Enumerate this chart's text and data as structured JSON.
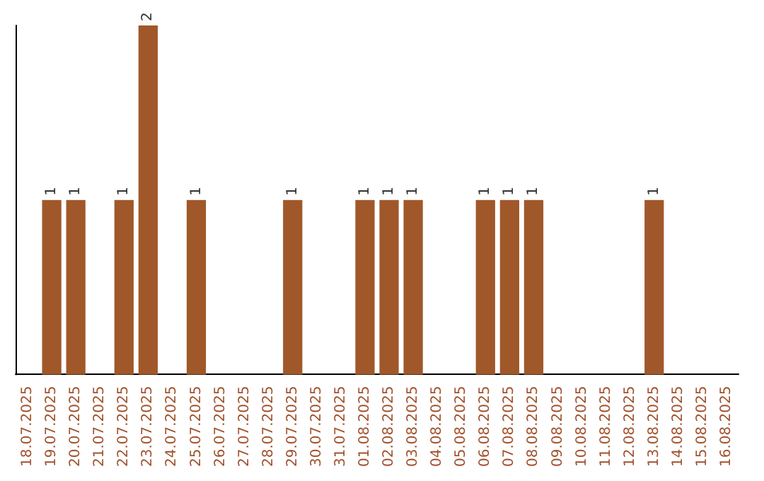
{
  "chart_data": {
    "type": "bar",
    "categories": [
      "18.07.2025",
      "19.07.2025",
      "20.07.2025",
      "21.07.2025",
      "22.07.2025",
      "23.07.2025",
      "24.07.2025",
      "25.07.2025",
      "26.07.2025",
      "27.07.2025",
      "28.07.2025",
      "29.07.2025",
      "30.07.2025",
      "31.07.2025",
      "01.08.2025",
      "02.08.2025",
      "03.08.2025",
      "04.08.2025",
      "05.08.2025",
      "06.08.2025",
      "07.08.2025",
      "08.08.2025",
      "09.08.2025",
      "10.08.2025",
      "11.08.2025",
      "12.08.2025",
      "13.08.2025",
      "14.08.2025",
      "15.08.2025",
      "16.08.2025"
    ],
    "values": [
      0,
      1,
      1,
      0,
      1,
      2,
      0,
      1,
      0,
      0,
      0,
      1,
      0,
      0,
      1,
      1,
      1,
      0,
      0,
      1,
      1,
      1,
      0,
      0,
      0,
      0,
      1,
      0,
      0,
      0
    ],
    "value_labels": [
      null,
      "1",
      "1",
      null,
      "1",
      "2",
      null,
      "1",
      null,
      null,
      null,
      "1",
      null,
      null,
      "1",
      "1",
      "1",
      null,
      null,
      "1",
      "1",
      "1",
      null,
      null,
      null,
      null,
      "1",
      null,
      null,
      null
    ],
    "color": "#a0582a",
    "tick_labels": "x",
    "grid": false
  }
}
